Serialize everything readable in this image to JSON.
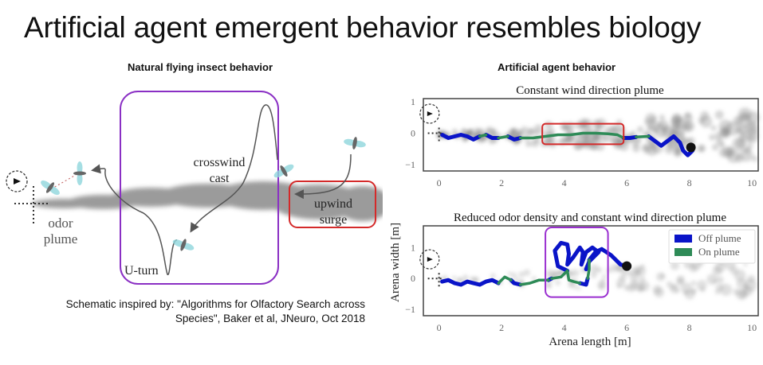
{
  "slide": {
    "title": "Artificial agent emergent behavior resembles biology",
    "left_heading": "Natural flying insect behavior",
    "right_heading": "Artificial agent behavior",
    "citation_line1": "Schematic inspired by: \"Algorithms for Olfactory Search across",
    "citation_line2": "Species\", Baker et al, JNeuro, Oct 2018"
  },
  "schematic": {
    "labels": {
      "odor_plume_1": "odor",
      "odor_plume_2": "plume",
      "crosswind_1": "crosswind",
      "crosswind_2": "cast",
      "upwind_1": "upwind",
      "upwind_2": "surge",
      "uturn": "U-turn"
    },
    "colors": {
      "purple_box": "#8a2fc4",
      "red_box": "#d42a2a",
      "plume": "#888888",
      "insect_wing": "#8fd6dc",
      "path": "#555555"
    }
  },
  "chart_data": [
    {
      "type": "line",
      "title": "Constant wind direction plume",
      "xlabel": "",
      "ylabel": "",
      "xlim": [
        -0.5,
        10.2
      ],
      "ylim": [
        -1.2,
        1.1
      ],
      "xticks": [
        "0",
        "2",
        "4",
        "6",
        "8",
        "10"
      ],
      "yticks": [
        "1",
        "0",
        "−1"
      ],
      "highlight_box": {
        "color": "#d42a2a",
        "x": [
          3.3,
          5.9
        ],
        "y": [
          -0.35,
          0.3
        ]
      },
      "series": [
        {
          "name": "Off plume",
          "color": "#0a14c8",
          "segments": [
            [
              [
                0.1,
                -0.05
              ],
              [
                0.3,
                -0.15
              ],
              [
                0.5,
                -0.1
              ],
              [
                0.7,
                -0.05
              ],
              [
                0.9,
                -0.1
              ],
              [
                1.1,
                -0.2
              ],
              [
                1.3,
                -0.1
              ]
            ],
            [
              [
                1.5,
                -0.05
              ],
              [
                1.7,
                -0.15
              ],
              [
                1.9,
                -0.15
              ]
            ],
            [
              [
                2.2,
                -0.1
              ],
              [
                2.4,
                -0.2
              ],
              [
                2.6,
                -0.15
              ]
            ],
            [
              [
                5.9,
                -0.15
              ],
              [
                6.1,
                -0.15
              ],
              [
                6.3,
                -0.12
              ]
            ],
            [
              [
                6.7,
                -0.1
              ],
              [
                6.9,
                -0.25
              ],
              [
                7.1,
                -0.4
              ],
              [
                7.3,
                -0.25
              ],
              [
                7.5,
                -0.1
              ],
              [
                7.7,
                -0.3
              ],
              [
                7.8,
                -0.55
              ],
              [
                7.95,
                -0.7
              ],
              [
                8.1,
                -0.55
              ],
              [
                8.05,
                -0.45
              ]
            ]
          ]
        },
        {
          "name": "On plume",
          "color": "#2e8b57",
          "segments": [
            [
              [
                1.3,
                -0.1
              ],
              [
                1.5,
                -0.05
              ]
            ],
            [
              [
                1.9,
                -0.15
              ],
              [
                2.2,
                -0.1
              ]
            ],
            [
              [
                2.6,
                -0.15
              ],
              [
                3.0,
                -0.15
              ],
              [
                3.4,
                -0.1
              ],
              [
                3.8,
                -0.05
              ],
              [
                4.2,
                -0.05
              ],
              [
                4.6,
                0.0
              ],
              [
                5.0,
                0.0
              ],
              [
                5.4,
                -0.02
              ],
              [
                5.7,
                -0.05
              ],
              [
                5.9,
                -0.15
              ]
            ],
            [
              [
                6.3,
                -0.12
              ],
              [
                6.7,
                -0.1
              ]
            ]
          ]
        }
      ],
      "end_point": [
        8.05,
        -0.45
      ],
      "plume_density": "high"
    },
    {
      "type": "line",
      "title": "Reduced odor density and constant wind direction plume",
      "xlabel": "Arena length [m]",
      "ylabel": "Arena width [m]",
      "xlim": [
        -0.5,
        10.2
      ],
      "ylim": [
        -1.2,
        1.7
      ],
      "xticks": [
        "0",
        "2",
        "4",
        "6",
        "8",
        "10"
      ],
      "yticks": [
        "1",
        "0",
        "−1"
      ],
      "legend": {
        "position": "top-right",
        "entries": [
          "Off plume",
          "On plume"
        ]
      },
      "highlight_box": {
        "color": "#9a2fd0",
        "x": [
          3.4,
          5.4
        ],
        "y": [
          -0.6,
          1.65
        ]
      },
      "series": [
        {
          "name": "Off plume",
          "color": "#0a14c8",
          "segments": [
            [
              [
                0.1,
                -0.1
              ],
              [
                0.3,
                -0.05
              ],
              [
                0.5,
                -0.15
              ],
              [
                0.7,
                -0.2
              ],
              [
                0.9,
                -0.1
              ],
              [
                1.1,
                -0.15
              ],
              [
                1.3,
                -0.2
              ],
              [
                1.5,
                -0.1
              ],
              [
                1.7,
                -0.05
              ],
              [
                1.9,
                -0.15
              ]
            ],
            [
              [
                2.3,
                -0.05
              ],
              [
                2.4,
                -0.15
              ],
              [
                2.6,
                -0.2
              ]
            ],
            [
              [
                3.5,
                -0.05
              ],
              [
                3.6,
                0.0
              ]
            ],
            [
              [
                4.1,
                0.25
              ],
              [
                3.8,
                0.4
              ],
              [
                3.7,
                0.9
              ],
              [
                3.9,
                1.15
              ],
              [
                4.1,
                1.1
              ],
              [
                4.15,
                0.8
              ],
              [
                4.1,
                0.45
              ],
              [
                4.3,
                0.7
              ],
              [
                4.5,
                1.0
              ],
              [
                4.6,
                0.85
              ],
              [
                4.55,
                0.45
              ],
              [
                4.7,
                0.85
              ],
              [
                4.9,
                1.0
              ],
              [
                5.1,
                0.85
              ],
              [
                4.8,
                0.55
              ],
              [
                4.7,
                0.3
              ]
            ],
            [
              [
                4.5,
                -0.15
              ],
              [
                4.7,
                -0.2
              ],
              [
                4.75,
                0.0
              ]
            ],
            [
              [
                4.8,
                0.6
              ],
              [
                5.0,
                0.85
              ],
              [
                5.2,
                0.95
              ],
              [
                5.5,
                0.75
              ],
              [
                5.8,
                0.45
              ],
              [
                6.0,
                0.4
              ]
            ]
          ]
        },
        {
          "name": "On plume",
          "color": "#2e8b57",
          "segments": [
            [
              [
                1.9,
                -0.15
              ],
              [
                2.1,
                0.05
              ],
              [
                2.3,
                -0.05
              ]
            ],
            [
              [
                2.6,
                -0.2
              ],
              [
                2.9,
                -0.15
              ],
              [
                3.2,
                -0.05
              ],
              [
                3.5,
                -0.05
              ]
            ],
            [
              [
                3.6,
                0.0
              ],
              [
                3.9,
                0.05
              ],
              [
                4.1,
                0.25
              ],
              [
                4.15,
                -0.05
              ],
              [
                4.3,
                -0.1
              ],
              [
                4.5,
                -0.15
              ]
            ],
            [
              [
                4.75,
                0.0
              ],
              [
                4.8,
                0.3
              ],
              [
                4.8,
                0.6
              ]
            ]
          ]
        }
      ],
      "end_point": [
        6.0,
        0.4
      ],
      "plume_density": "low"
    }
  ]
}
